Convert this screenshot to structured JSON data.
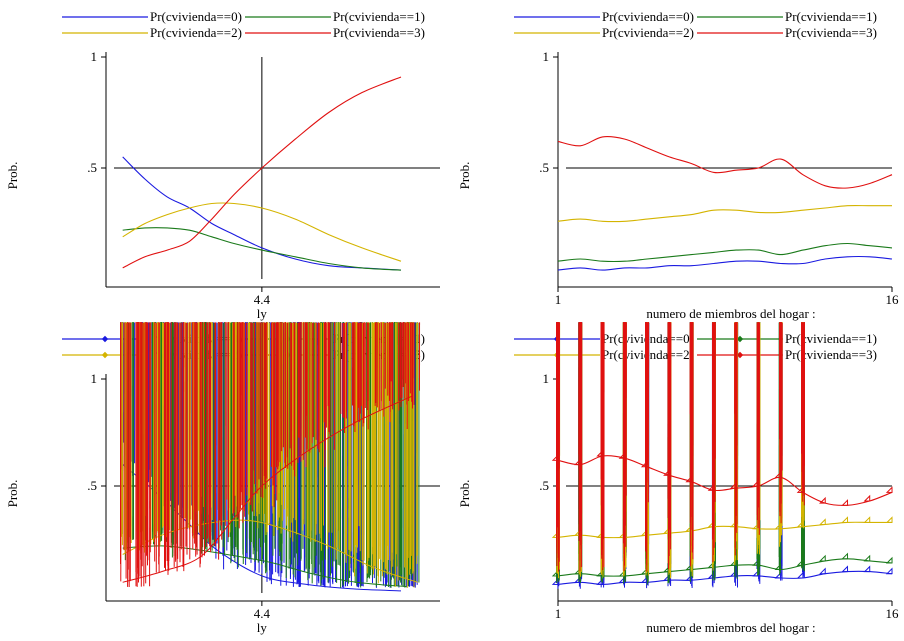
{
  "chart_data": [
    {
      "type": "line",
      "xlabel": "ly",
      "ylabel": "Prob.",
      "xticks": [
        4.4
      ],
      "yticks": [
        1,
        0.5
      ],
      "ytick_labels": [
        "1",
        ".5"
      ],
      "xlim": [
        1.6,
        7.6
      ],
      "ylim": [
        0,
        1
      ],
      "reference_lines": {
        "x": 4.4,
        "y": 0.5
      },
      "legend": [
        "Pr(cvivienda==0)",
        "Pr(cvivienda==1)",
        "Pr(cvivienda==2)",
        "Pr(cvivienda==3)"
      ],
      "legend_position": "top",
      "series": [
        {
          "name": "Pr(cvivienda==0)",
          "color": "#1a1ae0",
          "x": [
            1.9,
            2.3,
            2.7,
            3.1,
            3.5,
            3.9,
            4.4,
            5.0,
            5.6,
            6.2,
            6.9
          ],
          "y": [
            0.55,
            0.45,
            0.37,
            0.32,
            0.25,
            0.2,
            0.14,
            0.09,
            0.06,
            0.05,
            0.04
          ]
        },
        {
          "name": "Pr(cvivienda==1)",
          "color": "#1a7a1a",
          "x": [
            1.9,
            2.3,
            2.7,
            3.1,
            3.5,
            3.9,
            4.4,
            5.0,
            5.6,
            6.2,
            6.9
          ],
          "y": [
            0.22,
            0.23,
            0.23,
            0.22,
            0.19,
            0.16,
            0.13,
            0.1,
            0.07,
            0.05,
            0.04
          ]
        },
        {
          "name": "Pr(cvivienda==2)",
          "color": "#d4b400",
          "x": [
            1.9,
            2.3,
            2.7,
            3.1,
            3.5,
            3.9,
            4.4,
            5.0,
            5.6,
            6.2,
            6.9
          ],
          "y": [
            0.19,
            0.25,
            0.29,
            0.32,
            0.34,
            0.34,
            0.32,
            0.27,
            0.2,
            0.14,
            0.08
          ]
        },
        {
          "name": "Pr(cvivienda==3)",
          "color": "#e01010",
          "x": [
            1.9,
            2.3,
            2.7,
            3.1,
            3.5,
            3.9,
            4.4,
            5.0,
            5.6,
            6.2,
            6.9
          ],
          "y": [
            0.05,
            0.1,
            0.13,
            0.17,
            0.27,
            0.38,
            0.5,
            0.63,
            0.75,
            0.84,
            0.91
          ]
        }
      ]
    },
    {
      "type": "line",
      "xlabel": "numero de miembros del hogar :",
      "ylabel": "Prob.",
      "xticks": [
        1,
        16
      ],
      "yticks": [
        1,
        0.5
      ],
      "ytick_labels": [
        "1",
        ".5"
      ],
      "xlim": [
        1,
        16
      ],
      "ylim": [
        0,
        1
      ],
      "reference_lines": {
        "y": 0.5
      },
      "legend": [
        "Pr(cvivienda==0)",
        "Pr(cvivienda==1)",
        "Pr(cvivienda==2)",
        "Pr(cvivienda==3)"
      ],
      "legend_position": "top",
      "series": [
        {
          "name": "Pr(cvivienda==0)",
          "color": "#1a1ae0",
          "x": [
            1,
            2,
            3,
            4,
            5,
            6,
            7,
            8,
            9,
            10,
            11,
            12,
            13,
            14,
            15,
            16
          ],
          "y": [
            0.04,
            0.05,
            0.04,
            0.05,
            0.05,
            0.06,
            0.06,
            0.07,
            0.08,
            0.08,
            0.07,
            0.07,
            0.09,
            0.1,
            0.1,
            0.09
          ]
        },
        {
          "name": "Pr(cvivienda==1)",
          "color": "#1a7a1a",
          "x": [
            1,
            2,
            3,
            4,
            5,
            6,
            7,
            8,
            9,
            10,
            11,
            12,
            13,
            14,
            15,
            16
          ],
          "y": [
            0.08,
            0.09,
            0.08,
            0.08,
            0.09,
            0.1,
            0.11,
            0.12,
            0.13,
            0.13,
            0.11,
            0.13,
            0.15,
            0.16,
            0.15,
            0.14
          ]
        },
        {
          "name": "Pr(cvivienda==2)",
          "color": "#d4b400",
          "x": [
            1,
            2,
            3,
            4,
            5,
            6,
            7,
            8,
            9,
            10,
            11,
            12,
            13,
            14,
            15,
            16
          ],
          "y": [
            0.26,
            0.27,
            0.26,
            0.26,
            0.27,
            0.28,
            0.29,
            0.31,
            0.31,
            0.3,
            0.3,
            0.31,
            0.32,
            0.33,
            0.33,
            0.33
          ]
        },
        {
          "name": "Pr(cvivienda==3)",
          "color": "#e01010",
          "x": [
            1,
            2,
            3,
            4,
            5,
            6,
            7,
            8,
            9,
            10,
            11,
            12,
            13,
            14,
            15,
            16
          ],
          "y": [
            0.62,
            0.6,
            0.64,
            0.63,
            0.59,
            0.55,
            0.52,
            0.48,
            0.49,
            0.5,
            0.54,
            0.47,
            0.42,
            0.41,
            0.43,
            0.47
          ]
        }
      ]
    },
    {
      "type": "scatter",
      "xlabel": "ly",
      "ylabel": "Prob.",
      "xticks": [
        4.4
      ],
      "yticks": [
        1,
        0.5
      ],
      "ytick_labels": [
        "1",
        ".5"
      ],
      "xlim": [
        1.6,
        7.6
      ],
      "ylim": [
        0,
        1
      ],
      "reference_lines": {
        "x": 4.4,
        "y": 0.5
      },
      "legend": [
        "Pr(cvivienda==0)",
        "Pr(cvivienda==1)",
        "Pr(cvivienda==2)",
        "Pr(cvivienda==3)"
      ],
      "legend_position": "top",
      "marker": "diamond",
      "series": [
        {
          "name": "Pr(cvivienda==0)",
          "color": "#1a1ae0",
          "trend": [
            [
              1.9,
              0.6
            ],
            [
              2.5,
              0.47
            ],
            [
              3.1,
              0.32
            ],
            [
              3.6,
              0.2
            ],
            [
              4.4,
              0.08
            ],
            [
              5.2,
              0.04
            ],
            [
              6.0,
              0.02
            ],
            [
              6.9,
              0.01
            ]
          ],
          "spread": 0.04
        },
        {
          "name": "Pr(cvivienda==1)",
          "color": "#1a7a1a",
          "trend": [
            [
              1.9,
              0.21
            ],
            [
              2.6,
              0.22
            ],
            [
              3.3,
              0.2
            ],
            [
              4.0,
              0.17
            ],
            [
              4.6,
              0.14
            ],
            [
              5.3,
              0.09
            ],
            [
              6.1,
              0.05
            ],
            [
              7.0,
              0.03
            ]
          ],
          "spread": 0.04
        },
        {
          "name": "Pr(cvivienda==2)",
          "color": "#d4b400",
          "trend": [
            [
              1.9,
              0.18
            ],
            [
              2.6,
              0.27
            ],
            [
              3.3,
              0.32
            ],
            [
              4.1,
              0.34
            ],
            [
              4.8,
              0.3
            ],
            [
              5.6,
              0.22
            ],
            [
              6.4,
              0.12
            ],
            [
              7.2,
              0.05
            ]
          ],
          "spread": 0.05
        },
        {
          "name": "Pr(cvivienda==3)",
          "color": "#e01010",
          "trend": [
            [
              1.9,
              0.05
            ],
            [
              2.6,
              0.1
            ],
            [
              3.3,
              0.17
            ],
            [
              3.9,
              0.35
            ],
            [
              4.4,
              0.5
            ],
            [
              5.2,
              0.66
            ],
            [
              6.1,
              0.8
            ],
            [
              7.1,
              0.92
            ]
          ],
          "spread": 0.06
        }
      ]
    },
    {
      "type": "scatter",
      "xlabel": "numero de miembros del hogar :",
      "ylabel": "Prob.",
      "xticks": [
        1,
        16
      ],
      "yticks": [
        1,
        0.5
      ],
      "ytick_labels": [
        "1",
        ".5"
      ],
      "xlim": [
        1,
        16
      ],
      "ylim": [
        0,
        1
      ],
      "reference_lines": {
        "y": 0.5
      },
      "legend": [
        "Pr(cvivienda==0)",
        "Pr(cvivienda==1)",
        "Pr(cvivienda==2)",
        "Pr(cvivienda==3)"
      ],
      "legend_position": "top",
      "marker": "diamond",
      "series": [
        {
          "name": "Pr(cvivienda==0)",
          "color": "#1a1ae0",
          "x": [
            1,
            2,
            3,
            4,
            5,
            6,
            7,
            8,
            9,
            10,
            11,
            12,
            13,
            14,
            15,
            16
          ],
          "y": [
            0.04,
            0.05,
            0.04,
            0.05,
            0.05,
            0.06,
            0.06,
            0.07,
            0.08,
            0.08,
            0.07,
            0.07,
            0.09,
            0.1,
            0.1,
            0.09
          ],
          "ranges": [
            [
              0.0,
              0.3
            ],
            [
              0.0,
              0.3
            ],
            [
              0.0,
              0.3
            ],
            [
              0.0,
              0.3
            ],
            [
              0.0,
              0.3
            ],
            [
              0.0,
              0.3
            ],
            [
              0.0,
              0.28
            ],
            [
              0.0,
              0.28
            ],
            [
              0.0,
              0.25
            ],
            [
              0.02,
              0.2
            ],
            [
              0.03,
              0.15
            ],
            [
              0.05,
              0.1
            ]
          ]
        },
        {
          "name": "Pr(cvivienda==1)",
          "color": "#1a7a1a",
          "x": [
            1,
            2,
            3,
            4,
            5,
            6,
            7,
            8,
            9,
            10,
            11,
            12,
            13,
            14,
            15,
            16
          ],
          "y": [
            0.08,
            0.09,
            0.08,
            0.08,
            0.09,
            0.1,
            0.11,
            0.12,
            0.13,
            0.13,
            0.11,
            0.13,
            0.15,
            0.16,
            0.15,
            0.14
          ],
          "ranges": [
            [
              0.02,
              0.25
            ],
            [
              0.02,
              0.25
            ],
            [
              0.02,
              0.25
            ],
            [
              0.02,
              0.25
            ],
            [
              0.02,
              0.25
            ],
            [
              0.02,
              0.25
            ],
            [
              0.03,
              0.24
            ],
            [
              0.03,
              0.23
            ],
            [
              0.04,
              0.22
            ],
            [
              0.05,
              0.2
            ],
            [
              0.06,
              0.16
            ],
            [
              0.08,
              0.13
            ]
          ]
        },
        {
          "name": "Pr(cvivienda==2)",
          "color": "#d4b400",
          "x": [
            1,
            2,
            3,
            4,
            5,
            6,
            7,
            8,
            9,
            10,
            11,
            12,
            13,
            14,
            15,
            16
          ],
          "y": [
            0.26,
            0.27,
            0.26,
            0.26,
            0.27,
            0.28,
            0.29,
            0.31,
            0.31,
            0.3,
            0.3,
            0.31,
            0.32,
            0.33,
            0.33,
            0.33
          ],
          "ranges": [
            [
              0.05,
              0.36
            ],
            [
              0.05,
              0.36
            ],
            [
              0.05,
              0.36
            ],
            [
              0.05,
              0.36
            ],
            [
              0.05,
              0.36
            ],
            [
              0.05,
              0.36
            ],
            [
              0.06,
              0.36
            ],
            [
              0.08,
              0.35
            ],
            [
              0.1,
              0.35
            ],
            [
              0.15,
              0.34
            ],
            [
              0.2,
              0.33
            ],
            [
              0.28,
              0.34
            ]
          ]
        },
        {
          "name": "Pr(cvivienda==3)",
          "color": "#e01010",
          "x": [
            1,
            2,
            3,
            4,
            5,
            6,
            7,
            8,
            9,
            10,
            11,
            12,
            13,
            14,
            15,
            16
          ],
          "y": [
            0.62,
            0.6,
            0.64,
            0.63,
            0.59,
            0.55,
            0.52,
            0.48,
            0.49,
            0.5,
            0.54,
            0.47,
            0.42,
            0.41,
            0.43,
            0.47
          ],
          "ranges": [
            [
              0.08,
              0.96
            ],
            [
              0.08,
              0.95
            ],
            [
              0.08,
              0.95
            ],
            [
              0.08,
              0.94
            ],
            [
              0.08,
              0.93
            ],
            [
              0.08,
              0.92
            ],
            [
              0.1,
              0.91
            ],
            [
              0.12,
              0.88
            ],
            [
              0.15,
              0.85
            ],
            [
              0.25,
              0.78
            ],
            [
              0.3,
              0.72
            ],
            [
              0.38,
              0.66
            ]
          ]
        }
      ]
    }
  ],
  "panels_layout": "2x2"
}
